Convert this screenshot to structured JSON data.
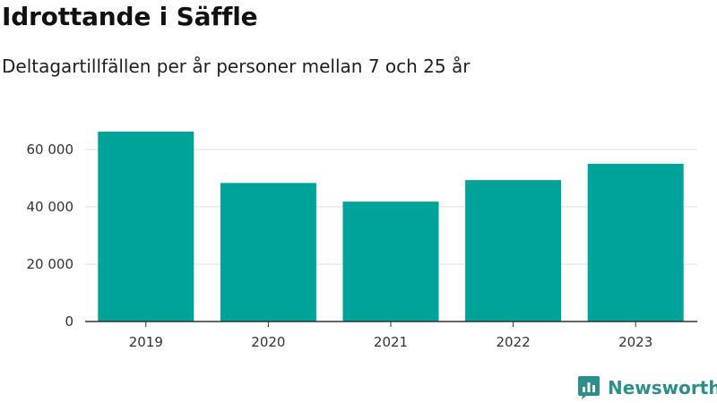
{
  "title": "Idrottande i Säffle",
  "subtitle": "Deltagartillfällen per år personer mellan 7 och 25 år",
  "brand": {
    "name": "Newsworthy",
    "icon": "newsworthy-logo-icon",
    "color": "#2e8f8a"
  },
  "colors": {
    "bar": "#00a39a",
    "grid": "#dddddd",
    "axis": "#333333"
  },
  "chart_data": {
    "type": "bar",
    "categories": [
      "2019",
      "2020",
      "2021",
      "2022",
      "2023"
    ],
    "values": [
      66200,
      48300,
      41800,
      49300,
      55000
    ],
    "ylim": [
      0,
      66200
    ],
    "yticks": [
      0,
      20000,
      40000,
      60000
    ],
    "ytick_labels": [
      "0",
      "20 000",
      "40 000",
      "60 000"
    ],
    "grid": true,
    "legend": "none"
  }
}
